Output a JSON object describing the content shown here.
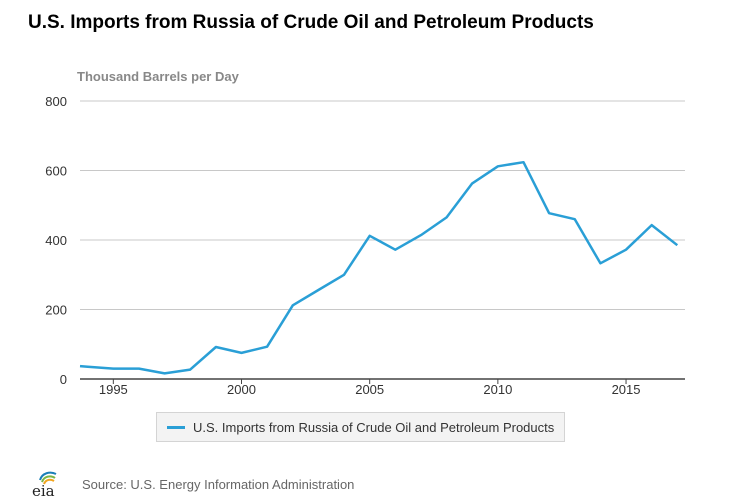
{
  "chart_data": {
    "type": "line",
    "title": "U.S. Imports from Russia of Crude Oil and Petroleum Products",
    "ylabel": "Thousand Barrels per Day",
    "xlabel": "",
    "xlim": [
      1993.7,
      2017.3
    ],
    "ylim": [
      0,
      800
    ],
    "x_ticks": [
      1995,
      2000,
      2005,
      2010,
      2015
    ],
    "y_ticks": [
      0,
      200,
      400,
      600,
      800
    ],
    "grid": "horizontal",
    "legend_position": "bottom-center",
    "series": [
      {
        "name": "U.S. Imports from Russia of Crude Oil and Petroleum Products",
        "color": "#2a9fd6",
        "x": [
          1993.7,
          1994,
          1995,
          1996,
          1997,
          1998,
          1999,
          2000,
          2001,
          2002,
          2003,
          2004,
          2005,
          2006,
          2007,
          2008,
          2009,
          2010,
          2011,
          2012,
          2013,
          2014,
          2015,
          2016,
          2017
        ],
        "y": [
          37,
          35,
          30,
          30,
          16,
          27,
          92,
          75,
          93,
          212,
          256,
          300,
          412,
          372,
          414,
          465,
          563,
          612,
          624,
          477,
          460,
          333,
          372,
          443,
          385
        ]
      }
    ]
  },
  "source": {
    "logo_text": "eia",
    "text": "Source: U.S. Energy Information Administration"
  }
}
